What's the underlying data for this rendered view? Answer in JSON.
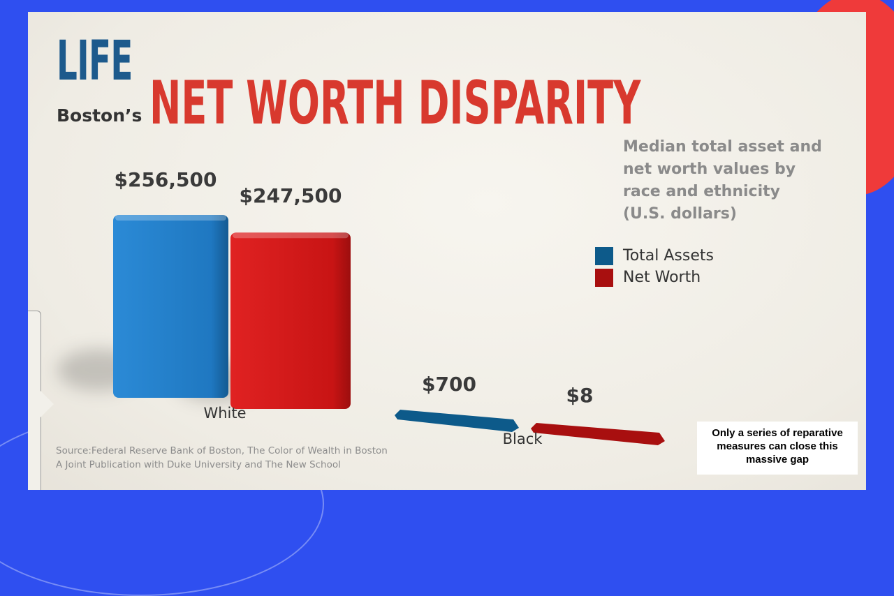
{
  "header": {
    "brand": "LIFE",
    "subtitle_prefix": "Boston’s",
    "title": "NET WORTH DISPARITY"
  },
  "chart_data": {
    "type": "bar",
    "title": "Median total asset and net worth values by race and ethnicity (U.S. dollars)",
    "categories": [
      "White",
      "Black"
    ],
    "series": [
      {
        "name": "Total Assets",
        "values": [
          256500,
          700
        ],
        "labels": [
          "$256,500",
          "$700"
        ],
        "color": "#1f78c1"
      },
      {
        "name": "Net Worth",
        "values": [
          247500,
          8
        ],
        "labels": [
          "$247,500",
          "$8"
        ],
        "color": "#cc1414"
      }
    ],
    "ylim": [
      0,
      256500
    ],
    "legend": "right"
  },
  "chart_text": {
    "subtitle_lines": [
      "Median total asset and",
      "net worth values by",
      "race and ethnicity",
      "(U.S. dollars)"
    ]
  },
  "legend": [
    {
      "label": "Total Assets",
      "color": "#0d5a8a"
    },
    {
      "label": "Net Worth",
      "color": "#a80f0f"
    }
  ],
  "source": {
    "line1": "Source:Federal Reserve Bank of Boston, The Color of Wealth in Boston",
    "line2": "A Joint Publication with Duke University and The New School"
  },
  "callout": {
    "text": "Only a series of reparative measures can close this massive gap"
  },
  "colors": {
    "background": "#2f4ff0",
    "accent_red": "#ef3a3a",
    "title_red": "#d8392e",
    "brand_blue": "#1d5a8c"
  }
}
